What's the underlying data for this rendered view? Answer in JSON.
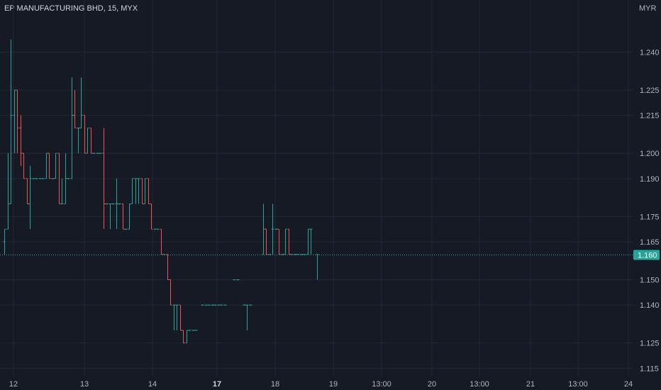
{
  "header": {
    "title": "EP MANUFACTURING BHD, 15, MYX",
    "currency": "MYR"
  },
  "colors": {
    "background": "#161a25",
    "up": "#26a69a",
    "down": "#ef5350",
    "grid": "#232734",
    "price_line": "#26a69a"
  },
  "chart_data": {
    "type": "ohlc",
    "yticks": [
      "1.240",
      "1.225",
      "1.215",
      "1.200",
      "1.190",
      "1.175",
      "1.165",
      "1.150",
      "1.140",
      "1.125",
      "1.115"
    ],
    "ylim": [
      1.112,
      1.255
    ],
    "xticks": [
      {
        "label": "12",
        "bold": false
      },
      {
        "label": "13",
        "bold": false
      },
      {
        "label": "14",
        "bold": false
      },
      {
        "label": "17",
        "bold": true
      },
      {
        "label": "18",
        "bold": false
      },
      {
        "label": "19",
        "bold": false
      },
      {
        "label": "13:00",
        "bold": false
      },
      {
        "label": "20",
        "bold": false
      },
      {
        "label": "13:00",
        "bold": false
      },
      {
        "label": "21",
        "bold": false
      },
      {
        "label": "13:00",
        "bold": false
      },
      {
        "label": "24",
        "bold": false
      }
    ],
    "last_price": "1.160",
    "last_price_value": 1.16,
    "bars": [
      [
        1.165,
        1.17,
        1.16,
        1.17
      ],
      [
        1.17,
        1.2,
        1.17,
        1.18
      ],
      [
        1.18,
        1.245,
        1.18,
        1.215
      ],
      [
        1.215,
        1.225,
        1.2,
        1.225
      ],
      [
        1.225,
        1.225,
        1.2,
        1.21
      ],
      [
        1.21,
        1.215,
        1.195,
        1.2
      ],
      [
        1.2,
        1.2,
        1.19,
        1.19
      ],
      [
        1.19,
        1.19,
        1.18,
        1.18
      ],
      [
        1.18,
        1.195,
        1.17,
        1.19
      ],
      [
        1.19,
        1.19,
        1.19,
        1.19
      ],
      [
        1.19,
        1.19,
        1.19,
        1.19
      ],
      [
        1.19,
        1.19,
        1.19,
        1.19
      ],
      [
        1.19,
        1.19,
        1.19,
        1.19
      ],
      [
        1.19,
        1.2,
        1.19,
        1.2
      ],
      [
        1.2,
        1.2,
        1.19,
        1.19
      ],
      [
        1.19,
        1.19,
        1.19,
        1.19
      ],
      [
        1.19,
        1.2,
        1.19,
        1.2
      ],
      [
        1.2,
        1.2,
        1.18,
        1.18
      ],
      [
        1.18,
        1.19,
        1.18,
        1.18
      ],
      [
        1.18,
        1.2,
        1.18,
        1.19
      ],
      [
        1.19,
        1.19,
        1.19,
        1.19
      ],
      [
        1.19,
        1.23,
        1.19,
        1.215
      ],
      [
        1.215,
        1.225,
        1.21,
        1.21
      ],
      [
        1.21,
        1.21,
        1.2,
        1.21
      ],
      [
        1.21,
        1.23,
        1.21,
        1.215
      ],
      [
        1.215,
        1.215,
        1.2,
        1.2
      ],
      [
        1.2,
        1.21,
        1.2,
        1.21
      ],
      [
        1.21,
        1.21,
        1.2,
        1.2
      ],
      [
        1.2,
        1.2,
        1.2,
        1.2
      ],
      [
        1.2,
        1.2,
        1.2,
        1.2
      ],
      [
        1.2,
        1.2,
        1.2,
        1.2
      ],
      [
        1.2,
        1.21,
        1.17,
        1.18
      ],
      [
        1.18,
        1.18,
        1.18,
        1.18
      ],
      [
        1.18,
        1.18,
        1.17,
        1.18
      ],
      [
        1.18,
        1.18,
        1.18,
        1.18
      ],
      [
        1.18,
        1.19,
        1.17,
        1.18
      ],
      [
        1.18,
        1.18,
        1.18,
        1.18
      ],
      [
        1.18,
        1.18,
        1.17,
        1.17
      ],
      [
        1.17,
        1.17,
        1.17,
        1.17
      ],
      [
        1.17,
        1.18,
        1.17,
        1.18
      ],
      [
        1.18,
        1.19,
        1.18,
        1.19
      ],
      [
        1.19,
        1.19,
        1.18,
        1.19
      ],
      [
        1.19,
        1.19,
        1.18,
        1.19
      ],
      [
        1.19,
        1.19,
        1.18,
        1.18
      ],
      [
        1.18,
        1.19,
        1.18,
        1.19
      ],
      [
        1.19,
        1.19,
        1.18,
        1.18
      ],
      [
        1.18,
        1.18,
        1.17,
        1.17
      ],
      [
        1.17,
        1.17,
        1.17,
        1.17
      ],
      [
        1.17,
        1.17,
        1.17,
        1.17
      ],
      [
        1.17,
        1.17,
        1.16,
        1.16
      ],
      [
        1.16,
        1.16,
        1.16,
        1.16
      ],
      [
        1.16,
        1.16,
        1.15,
        1.15
      ],
      [
        1.15,
        1.15,
        1.14,
        1.14
      ],
      [
        1.14,
        1.14,
        1.13,
        1.14
      ],
      [
        1.14,
        1.14,
        1.13,
        1.14
      ],
      [
        1.14,
        1.14,
        1.13,
        1.13
      ],
      [
        1.13,
        1.13,
        1.125,
        1.125
      ],
      [
        1.125,
        1.13,
        1.125,
        1.13
      ],
      [
        1.13,
        1.13,
        1.13,
        1.13
      ],
      [
        1.13,
        1.13,
        1.13,
        1.13
      ],
      [
        1.13,
        1.13,
        1.13,
        1.13
      ],
      [
        null,
        null,
        null,
        null
      ],
      [
        1.14,
        1.14,
        1.14,
        1.14
      ],
      [
        1.14,
        1.14,
        1.14,
        1.14
      ],
      [
        1.14,
        1.14,
        1.14,
        1.14
      ],
      [
        1.14,
        1.14,
        1.14,
        1.14
      ],
      [
        1.14,
        1.14,
        1.14,
        1.14
      ],
      [
        1.14,
        1.14,
        1.14,
        1.14
      ],
      [
        1.14,
        1.14,
        1.14,
        1.14
      ],
      [
        1.14,
        1.14,
        1.14,
        1.14
      ],
      [
        null,
        null,
        null,
        null
      ],
      [
        null,
        null,
        null,
        null
      ],
      [
        1.15,
        1.15,
        1.15,
        1.15
      ],
      [
        1.15,
        1.15,
        1.15,
        1.15
      ],
      [
        null,
        null,
        null,
        null
      ],
      [
        1.14,
        1.14,
        1.14,
        1.14
      ],
      [
        1.14,
        1.14,
        1.13,
        1.14
      ],
      [
        1.14,
        1.14,
        1.14,
        1.14
      ],
      [
        null,
        null,
        null,
        null
      ],
      [
        null,
        null,
        null,
        null
      ],
      [
        null,
        null,
        null,
        null
      ],
      [
        1.16,
        1.18,
        1.16,
        1.17
      ],
      [
        1.17,
        1.17,
        1.16,
        1.16
      ],
      [
        1.16,
        1.16,
        1.16,
        1.16
      ],
      [
        1.17,
        1.18,
        1.16,
        1.17
      ],
      [
        1.17,
        1.17,
        1.17,
        1.17
      ],
      [
        1.17,
        1.17,
        1.16,
        1.16
      ],
      [
        1.16,
        1.16,
        1.16,
        1.16
      ],
      [
        1.16,
        1.17,
        1.16,
        1.17
      ],
      [
        1.17,
        1.17,
        1.16,
        1.16
      ],
      [
        1.16,
        1.16,
        1.16,
        1.16
      ],
      [
        1.16,
        1.16,
        1.16,
        1.16
      ],
      [
        1.16,
        1.16,
        1.16,
        1.16
      ],
      [
        1.16,
        1.16,
        1.16,
        1.16
      ],
      [
        1.16,
        1.16,
        1.16,
        1.16
      ],
      [
        1.16,
        1.17,
        1.16,
        1.17
      ],
      [
        1.17,
        1.17,
        1.16,
        1.17
      ],
      [
        null,
        null,
        null,
        null
      ],
      [
        1.16,
        1.16,
        1.15,
        1.16
      ]
    ]
  }
}
